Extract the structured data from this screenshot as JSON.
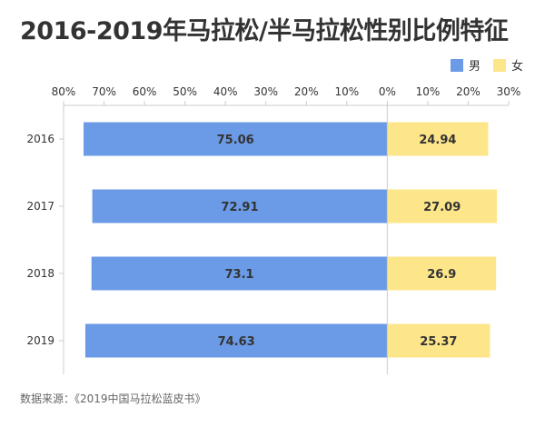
{
  "title": "2016-2019年马拉松/半马拉松性别比例特征",
  "source": "数据来源：《2019中国马拉松蓝皮书》",
  "colors": {
    "male": "#6b9be6",
    "female": "#fde68a",
    "axis": "#cccccc",
    "text": "#333333"
  },
  "chart_data": {
    "type": "bar",
    "orientation": "horizontal-diverging",
    "categories": [
      "2016",
      "2017",
      "2018",
      "2019"
    ],
    "series": [
      {
        "name": "男",
        "values": [
          75.06,
          72.91,
          73.1,
          74.63
        ]
      },
      {
        "name": "女",
        "values": [
          24.94,
          27.09,
          26.9,
          25.37
        ]
      }
    ],
    "xlim": [
      -80,
      30
    ],
    "ticks": [
      -80,
      -70,
      -60,
      -50,
      -40,
      -30,
      -20,
      -10,
      0,
      10,
      20,
      30
    ],
    "tick_labels": [
      "80%",
      "70%",
      "60%",
      "50%",
      "40%",
      "30%",
      "20%",
      "10%",
      "0%",
      "10%",
      "20%",
      "30%"
    ],
    "axis_position": "top",
    "legend_position": "top-right",
    "grid": false
  }
}
